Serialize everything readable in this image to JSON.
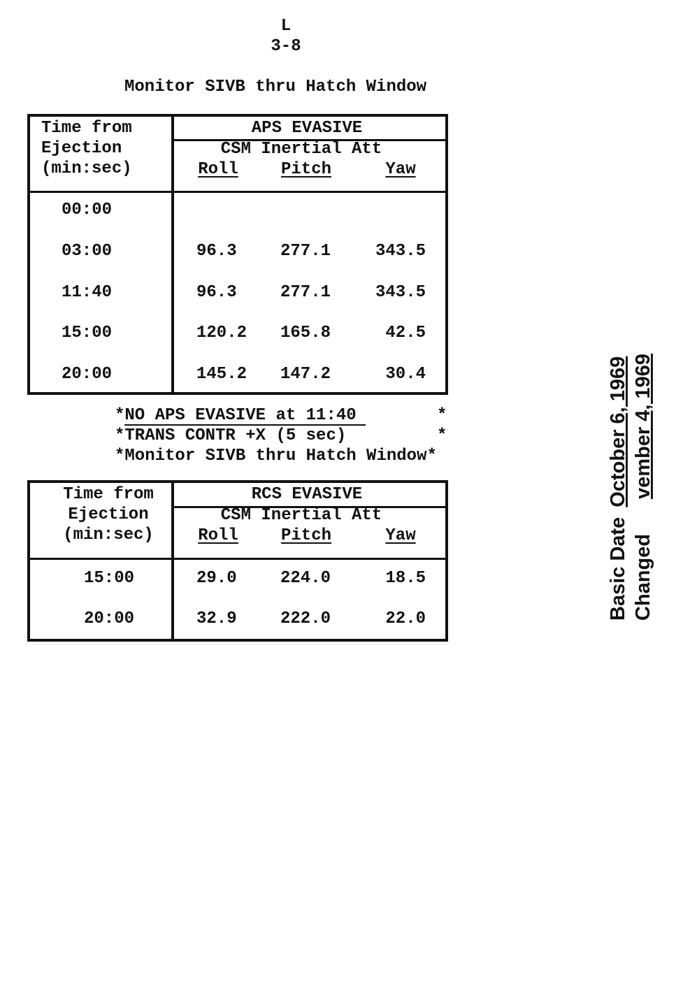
{
  "header": {
    "letter": "L",
    "page": "3-8"
  },
  "note_top": "Monitor SIVB thru Hatch Window",
  "table1": {
    "time_header": [
      "Time from",
      "Ejection",
      "(min:sec)"
    ],
    "title": "APS EVASIVE",
    "subtitle": "CSM Inertial Att",
    "columns": [
      "Roll",
      "Pitch",
      "Yaw"
    ],
    "rows": [
      [
        "00:00"
      ],
      [
        "03:00",
        "96.3",
        "277.1",
        "343.5"
      ],
      [
        "11:40",
        "96.3",
        "277.1",
        "343.5"
      ],
      [
        "15:00",
        "120.2",
        "165.8",
        "42.5"
      ],
      [
        "20:00",
        "145.2",
        "147.2",
        "30.4"
      ]
    ]
  },
  "notes": [
    {
      "text": "*NO APS EVASIVE at 11:40",
      "end": "*"
    },
    {
      "text": "*TRANS CONTR +X (5 sec)",
      "end": "*"
    },
    {
      "text": "*Monitor SIVB thru Hatch Window*"
    }
  ],
  "table2": {
    "time_header": [
      "Time from",
      "Ejection",
      "(min:sec)"
    ],
    "title": "RCS EVASIVE",
    "subtitle": "CSM Inertial Att",
    "columns": [
      "Roll",
      "Pitch",
      "Yaw"
    ],
    "rows": [
      [
        "15:00",
        "29.0",
        "224.0",
        "18.5"
      ],
      [
        "20:00",
        "32.9",
        "222.0",
        "22.0"
      ]
    ]
  },
  "side": {
    "basic_label": "Basic Date",
    "basic_date": "October 6, 1969",
    "changed_label": "Changed",
    "changed_date": "vember 4, 1969"
  }
}
